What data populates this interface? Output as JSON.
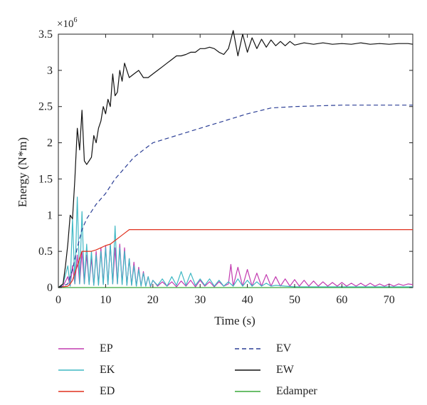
{
  "chart_data": {
    "type": "line",
    "xlabel": "Time (s)",
    "ylabel": "Energy (N*m)",
    "y_multiplier": "×10",
    "y_multiplier_exp": "6",
    "xlim": [
      0,
      75
    ],
    "ylim": [
      0,
      3.5
    ],
    "x_ticks": [
      "0",
      "10",
      "20",
      "30",
      "40",
      "50",
      "60",
      "70"
    ],
    "y_ticks": [
      "0",
      "0.5",
      "1",
      "1.5",
      "2",
      "2.5",
      "3",
      "3.5"
    ],
    "x_tick_values": [
      0,
      10,
      20,
      30,
      40,
      50,
      60,
      70
    ],
    "y_tick_values": [
      0,
      0.5,
      1,
      1.5,
      2,
      2.5,
      3,
      3.5
    ],
    "grid": false,
    "legend_position": "bottom",
    "series": [
      {
        "name": "EP",
        "color": "#c23bb0",
        "style": "solid",
        "x": [
          0,
          1,
          2,
          2.5,
          3,
          3.5,
          4,
          4.5,
          5,
          5.5,
          6,
          6.5,
          7,
          7.5,
          8,
          8.5,
          9,
          9.5,
          10,
          10.5,
          11,
          11.5,
          12,
          12.5,
          13,
          13.5,
          14,
          14.5,
          15,
          15.5,
          16,
          16.5,
          17,
          17.5,
          18,
          18.5,
          19,
          19.5,
          20,
          21,
          22,
          23,
          24,
          25,
          26,
          27,
          28,
          29,
          30,
          31,
          32,
          33,
          34,
          35,
          36,
          36.5,
          37,
          38,
          39,
          40,
          41,
          42,
          43,
          44,
          45,
          46,
          47,
          48,
          49,
          50,
          51,
          52,
          53,
          54,
          55,
          56,
          57,
          58,
          59,
          60,
          61,
          62,
          63,
          64,
          65,
          66,
          67,
          68,
          69,
          70,
          71,
          72,
          73,
          74,
          75
        ],
        "y": [
          0,
          0.02,
          0.15,
          0.02,
          0.3,
          0.05,
          0.45,
          0.05,
          0.5,
          0.05,
          0.45,
          0.05,
          0.4,
          0.03,
          0.5,
          0.04,
          0.55,
          0.05,
          0.58,
          0.04,
          0.6,
          0.05,
          0.55,
          0.05,
          0.6,
          0.05,
          0.55,
          0.03,
          0.4,
          0.03,
          0.35,
          0.02,
          0.28,
          0.02,
          0.22,
          0.02,
          0.15,
          0.01,
          0.1,
          0.02,
          0.08,
          0.02,
          0.08,
          0.01,
          0.09,
          0.02,
          0.1,
          0.01,
          0.1,
          0.02,
          0.08,
          0.01,
          0.08,
          0.02,
          0.05,
          0.32,
          0.02,
          0.28,
          0.02,
          0.25,
          0.02,
          0.2,
          0.02,
          0.18,
          0.02,
          0.15,
          0.02,
          0.12,
          0.02,
          0.11,
          0.02,
          0.1,
          0.02,
          0.09,
          0.02,
          0.08,
          0.02,
          0.07,
          0.02,
          0.07,
          0.02,
          0.06,
          0.02,
          0.06,
          0.02,
          0.06,
          0.02,
          0.05,
          0.02,
          0.05,
          0.02,
          0.05,
          0.03,
          0.05,
          0.04
        ]
      },
      {
        "name": "EK",
        "color": "#3fb8c4",
        "style": "solid",
        "x": [
          0,
          1,
          2,
          2.5,
          3,
          3.5,
          4,
          4.5,
          5,
          5.5,
          6,
          6.5,
          7,
          7.5,
          8,
          8.5,
          9,
          9.5,
          10,
          10.5,
          11,
          11.5,
          12,
          12.5,
          13,
          13.5,
          14,
          14.5,
          15,
          15.5,
          16,
          16.5,
          17,
          17.5,
          18,
          18.5,
          19,
          19.5,
          20,
          21,
          22,
          23,
          24,
          25,
          26,
          27,
          28,
          29,
          30,
          31,
          32,
          33,
          34,
          35,
          36,
          37,
          38,
          39,
          40,
          41,
          42,
          43,
          44,
          45,
          46,
          48,
          50,
          55,
          60,
          65,
          70,
          75
        ],
        "y": [
          0,
          0.05,
          0.3,
          0.02,
          0.95,
          0.05,
          1.25,
          0.05,
          1.05,
          0.05,
          0.6,
          0.04,
          0.5,
          0.03,
          0.45,
          0.03,
          0.5,
          0.04,
          0.55,
          0.04,
          0.6,
          0.05,
          0.85,
          0.05,
          0.55,
          0.04,
          0.5,
          0.03,
          0.4,
          0.03,
          0.3,
          0.02,
          0.25,
          0.02,
          0.2,
          0.02,
          0.15,
          0.02,
          0.1,
          0.03,
          0.12,
          0.02,
          0.15,
          0.03,
          0.22,
          0.03,
          0.2,
          0.03,
          0.12,
          0.03,
          0.12,
          0.02,
          0.1,
          0.02,
          0.08,
          0.02,
          0.12,
          0.02,
          0.1,
          0.02,
          0.08,
          0.02,
          0.06,
          0.02,
          0.03,
          0.02,
          0.01,
          0.01,
          0.01,
          0.01,
          0.01,
          0.01
        ]
      },
      {
        "name": "ED",
        "color": "#e0301e",
        "style": "solid",
        "x": [
          0,
          2,
          2.5,
          3,
          3.5,
          4,
          4.5,
          5,
          7,
          8,
          9,
          10,
          11,
          12,
          13,
          14,
          15,
          75
        ],
        "y": [
          0,
          0.02,
          0.05,
          0.1,
          0.2,
          0.3,
          0.4,
          0.5,
          0.5,
          0.52,
          0.55,
          0.58,
          0.6,
          0.65,
          0.7,
          0.75,
          0.8,
          0.8
        ]
      },
      {
        "name": "EV",
        "color": "#2c3f96",
        "style": "dashed",
        "x": [
          0,
          2,
          3,
          4,
          5,
          6,
          8,
          10,
          12,
          14,
          16,
          18,
          20,
          25,
          30,
          35,
          40,
          45,
          50,
          55,
          60,
          65,
          70,
          75
        ],
        "y": [
          0,
          0.05,
          0.25,
          0.55,
          0.8,
          0.95,
          1.15,
          1.3,
          1.5,
          1.65,
          1.8,
          1.9,
          2.0,
          2.1,
          2.2,
          2.3,
          2.4,
          2.48,
          2.5,
          2.51,
          2.52,
          2.52,
          2.52,
          2.52
        ]
      },
      {
        "name": "EW",
        "color": "#111111",
        "style": "solid",
        "x": [
          0,
          1,
          1.5,
          2,
          2.5,
          3,
          3.5,
          4,
          4.5,
          5,
          5.5,
          6,
          6.5,
          7,
          7.5,
          8,
          8.5,
          9,
          9.5,
          10,
          10.5,
          11,
          11.5,
          12,
          12.5,
          13,
          13.5,
          14,
          14.5,
          15,
          16,
          17,
          18,
          19,
          20,
          21,
          22,
          23,
          24,
          25,
          26,
          27,
          28,
          29,
          30,
          31,
          32,
          33,
          34,
          35,
          36,
          37,
          38,
          39,
          40,
          41,
          42,
          43,
          44,
          45,
          46,
          47,
          48,
          49,
          50,
          52,
          54,
          56,
          58,
          60,
          62,
          64,
          66,
          68,
          70,
          72,
          74,
          75
        ],
        "y": [
          0,
          0.05,
          0.3,
          0.6,
          1.0,
          0.95,
          1.5,
          2.2,
          1.9,
          2.45,
          1.75,
          1.7,
          1.75,
          1.8,
          2.1,
          2.0,
          2.2,
          2.3,
          2.5,
          2.4,
          2.6,
          2.5,
          2.95,
          2.65,
          2.7,
          3.0,
          2.85,
          3.1,
          3.0,
          2.9,
          2.95,
          3.0,
          2.9,
          2.9,
          2.95,
          3.0,
          3.05,
          3.1,
          3.15,
          3.2,
          3.2,
          3.22,
          3.25,
          3.25,
          3.3,
          3.3,
          3.32,
          3.3,
          3.25,
          3.22,
          3.3,
          3.55,
          3.2,
          3.5,
          3.25,
          3.45,
          3.3,
          3.43,
          3.32,
          3.42,
          3.34,
          3.4,
          3.34,
          3.4,
          3.35,
          3.38,
          3.36,
          3.38,
          3.36,
          3.37,
          3.36,
          3.38,
          3.36,
          3.37,
          3.36,
          3.37,
          3.37,
          3.36
        ]
      },
      {
        "name": "Edamper",
        "color": "#3aa83a",
        "style": "solid",
        "x": [
          0,
          75
        ],
        "y": [
          0,
          0
        ]
      }
    ]
  }
}
